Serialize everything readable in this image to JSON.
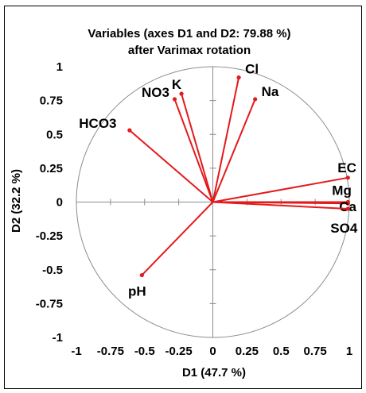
{
  "chart_data": {
    "type": "scatter",
    "subtype": "correlation-circle",
    "title_line1": "Variables (axes D1 and D2: 79.88 %)",
    "title_line2": "after Varimax rotation",
    "xlabel": "D1 (47.7 %)",
    "ylabel": "D2 (32.2 %)",
    "xlim": [
      -1,
      1
    ],
    "ylim": [
      -1,
      1
    ],
    "xticks": [
      "-1",
      "-0.75",
      "-0.5",
      "-0.25",
      "0",
      "0.25",
      "0.5",
      "0.75",
      "1"
    ],
    "yticks": [
      "1",
      "0.75",
      "0.5",
      "0.25",
      "0",
      "-0.25",
      "-0.5",
      "-0.75",
      "-1"
    ],
    "vector_color": "#e31a1c",
    "variables": [
      {
        "name": "Cl",
        "x": 0.19,
        "y": 0.92
      },
      {
        "name": "Na",
        "x": 0.31,
        "y": 0.76
      },
      {
        "name": "K",
        "x": -0.23,
        "y": 0.8
      },
      {
        "name": "NO3",
        "x": -0.28,
        "y": 0.76
      },
      {
        "name": "HCO3",
        "x": -0.61,
        "y": 0.53
      },
      {
        "name": "EC",
        "x": 0.99,
        "y": 0.18
      },
      {
        "name": "Mg",
        "x": 0.99,
        "y": 0.0
      },
      {
        "name": "Ca",
        "x": 0.99,
        "y": -0.01
      },
      {
        "name": "SO4",
        "x": 0.99,
        "y": -0.05
      },
      {
        "name": "pH",
        "x": -0.52,
        "y": -0.54
      }
    ]
  }
}
